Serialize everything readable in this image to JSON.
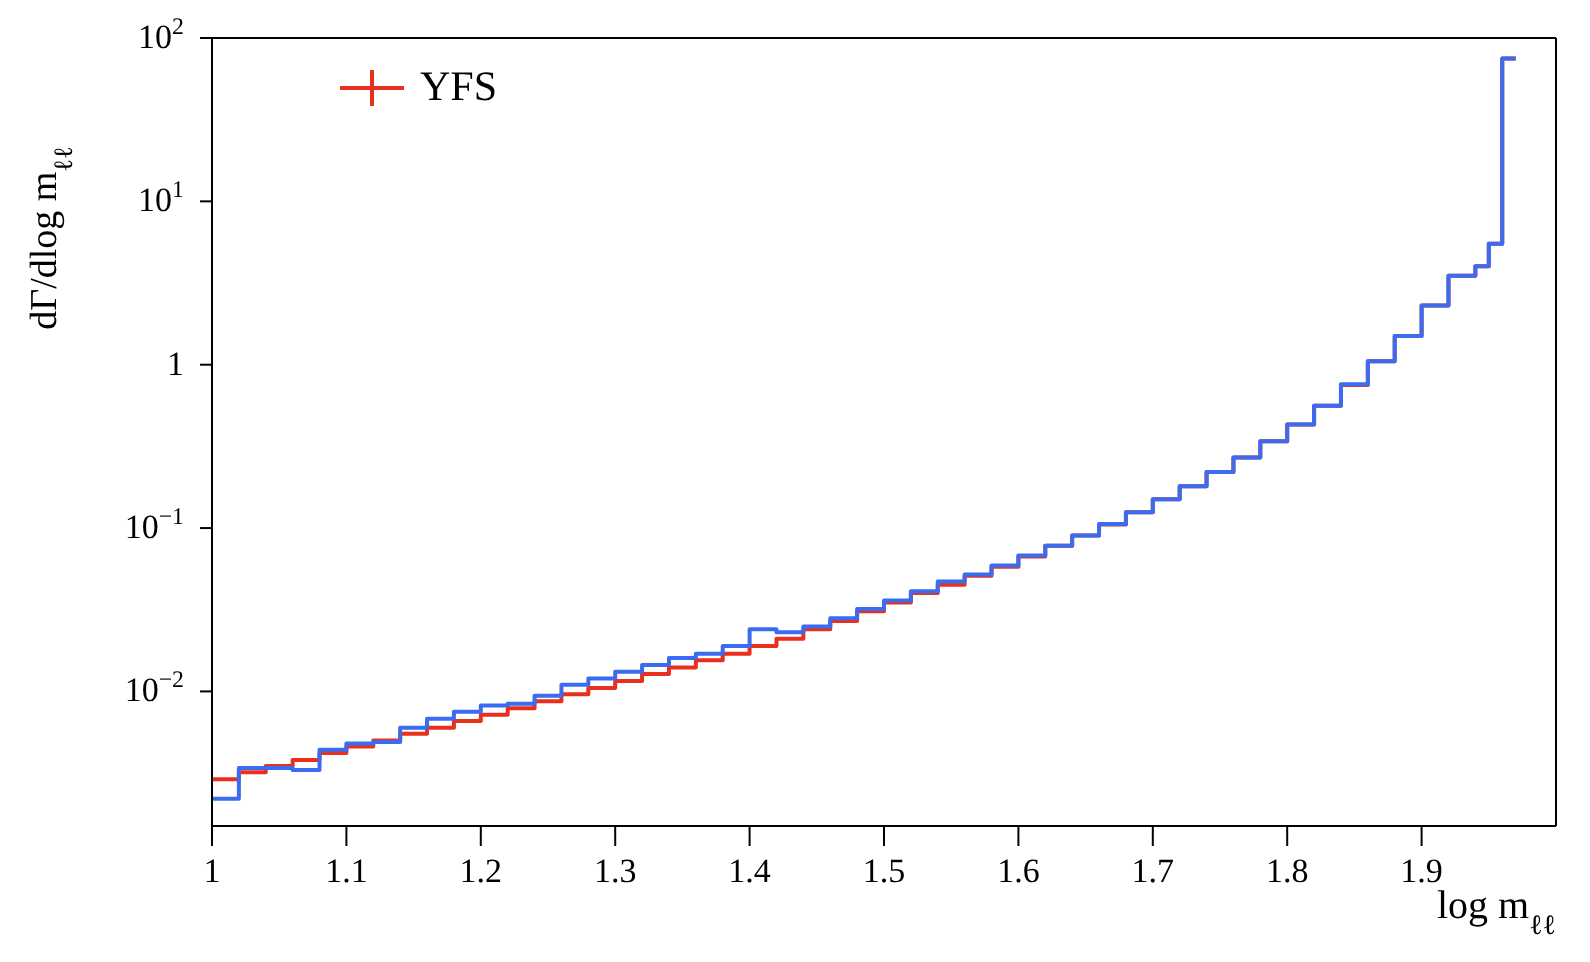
{
  "chart_data": {
    "type": "histogram",
    "xlabel": "log m$_{ℓℓ}$",
    "ylabel": "dΓ/dlog m$_{ℓℓ}$",
    "log": "y",
    "grid": false,
    "legend": "top left",
    "line_style": "solid",
    "bins": [
      1.0,
      1.02,
      1.04,
      1.06,
      1.08,
      1.1,
      1.12,
      1.14,
      1.16,
      1.18,
      1.2,
      1.22,
      1.24,
      1.26,
      1.28,
      1.3,
      1.32,
      1.34,
      1.36,
      1.38,
      1.4,
      1.42,
      1.44,
      1.46,
      1.48,
      1.5,
      1.52,
      1.54,
      1.56,
      1.58,
      1.6,
      1.62,
      1.64,
      1.66,
      1.68,
      1.7,
      1.72,
      1.74,
      1.76,
      1.78,
      1.8,
      1.82,
      1.84,
      1.86,
      1.88,
      1.9,
      1.92,
      1.94,
      1.95,
      1.96,
      1.97
    ],
    "series": [
      {
        "name": "YFS",
        "color": "#e8301c",
        "values": [
          0.0029,
          0.0032,
          0.0035,
          0.0038,
          0.0042,
          0.0046,
          0.005,
          0.0055,
          0.006,
          0.0066,
          0.0072,
          0.0079,
          0.0087,
          0.0096,
          0.0105,
          0.0116,
          0.0128,
          0.014,
          0.0155,
          0.017,
          0.019,
          0.021,
          0.024,
          0.027,
          0.031,
          0.035,
          0.04,
          0.045,
          0.051,
          0.058,
          0.067,
          0.078,
          0.09,
          0.105,
          0.125,
          0.15,
          0.18,
          0.22,
          0.27,
          0.34,
          0.43,
          0.56,
          0.75,
          1.05,
          1.5,
          2.3,
          3.5,
          4,
          5.5,
          75
        ]
      },
      {
        "color": "#3b6cf0",
        "values": [
          0.0022,
          0.0034,
          0.0034,
          0.0033,
          0.0044,
          0.0048,
          0.0049,
          0.006,
          0.0068,
          0.0075,
          0.0082,
          0.0084,
          0.0094,
          0.011,
          0.012,
          0.0132,
          0.0145,
          0.016,
          0.017,
          0.019,
          0.024,
          0.023,
          0.025,
          0.028,
          0.032,
          0.036,
          0.041,
          0.047,
          0.052,
          0.059,
          0.068,
          0.078,
          0.09,
          0.106,
          0.125,
          0.15,
          0.18,
          0.22,
          0.27,
          0.34,
          0.43,
          0.56,
          0.76,
          1.05,
          1.5,
          2.3,
          3.5,
          4,
          5.5,
          75
        ]
      }
    ],
    "xlim": [
      1,
      2
    ],
    "xticks": [
      1,
      1.1,
      1.2,
      1.3,
      1.4,
      1.5,
      1.6,
      1.7,
      1.8,
      1.9
    ],
    "ylim": [
      0.0015,
      100
    ],
    "yticks": [
      {
        "value": 0.01,
        "label": "10$^{−2}$"
      },
      {
        "value": 0.1,
        "label": "10$^{−1}$"
      },
      1,
      {
        "value": 10,
        "label": "10$^{1}$"
      },
      {
        "value": 100,
        "label": "10$^{2}$"
      }
    ]
  }
}
